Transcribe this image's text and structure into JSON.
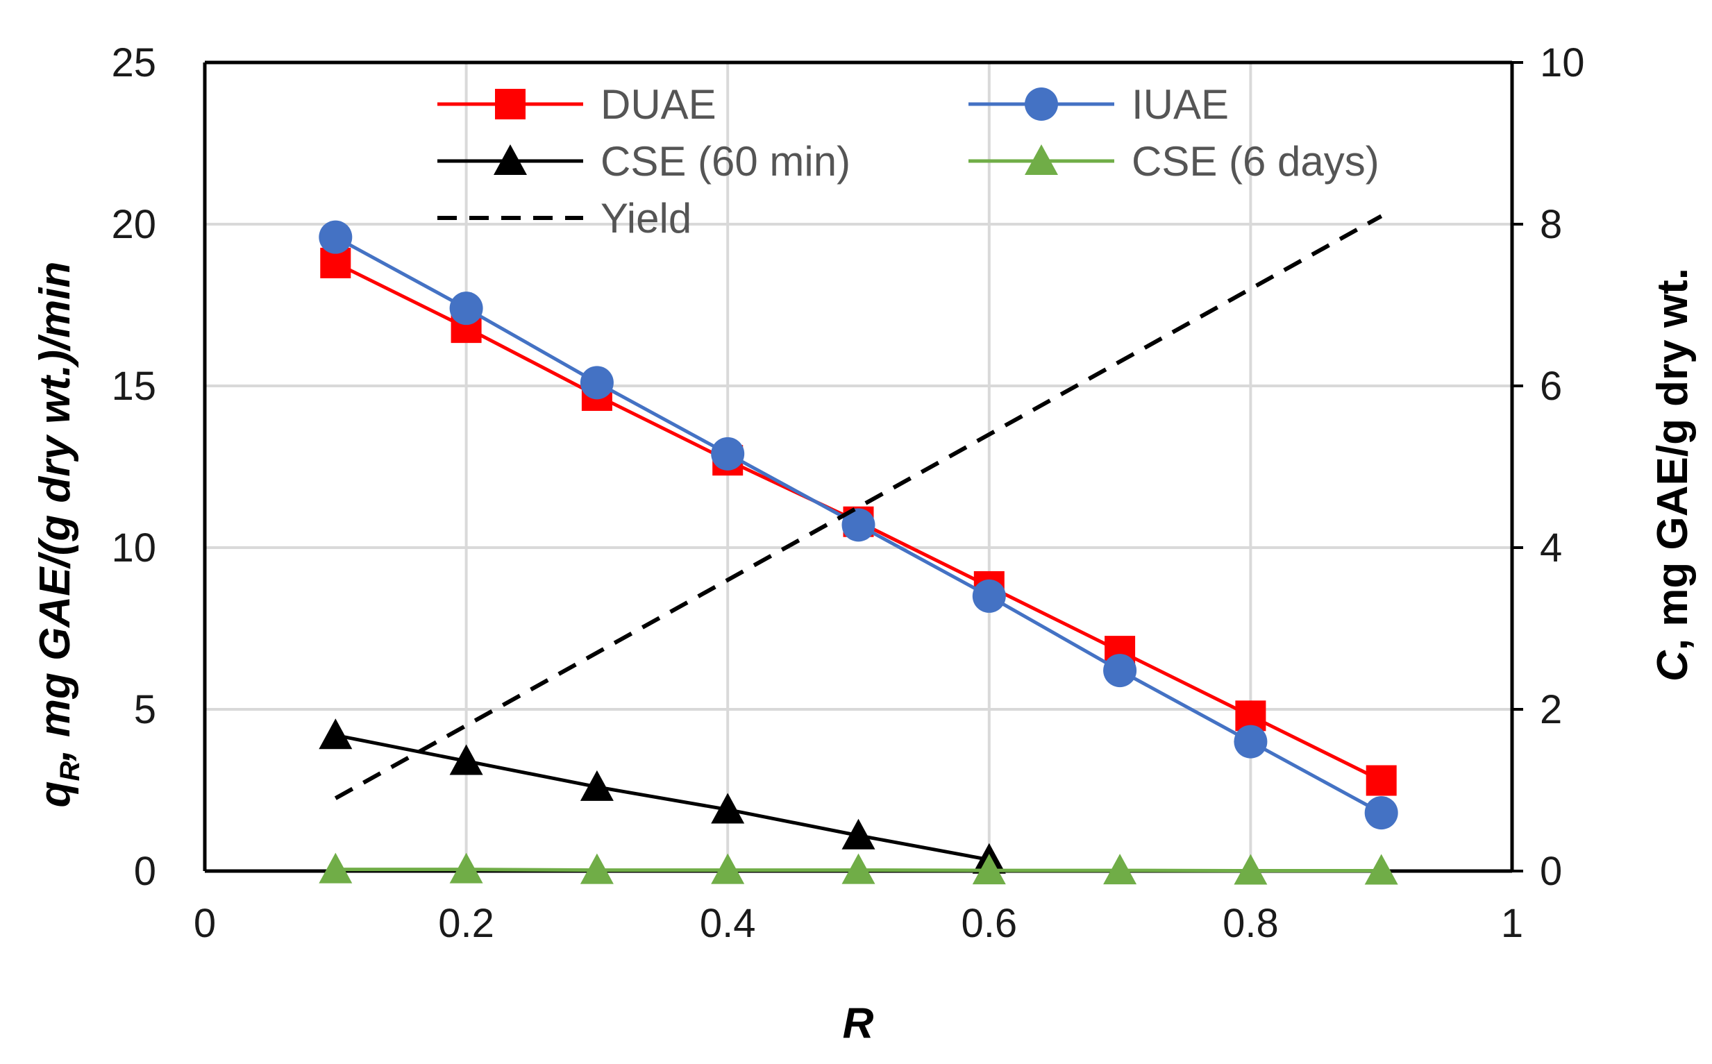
{
  "chart_data": {
    "type": "line",
    "title": "",
    "xlabel": "R",
    "ylabel": "qR, mg GAE/(g dry wt.)/min",
    "ylabel_parts": {
      "var": "q",
      "sub": "R",
      "rest": ", mg GAE/(g dry wt.)/min"
    },
    "y2label": "C, mg GAE/g dry wt.",
    "y2label_parts": {
      "var": "C",
      "rest": ", mg GAE/g dry wt."
    },
    "xlim": [
      0,
      1
    ],
    "ylim": [
      0,
      25
    ],
    "y2lim": [
      0,
      10
    ],
    "x_ticks": [
      "0",
      "0.2",
      "0.4",
      "0.6",
      "0.8",
      "1"
    ],
    "x_tick_values": [
      0,
      0.2,
      0.4,
      0.6,
      0.8,
      1
    ],
    "y_ticks": [
      "0",
      "5",
      "10",
      "15",
      "20",
      "25"
    ],
    "y_tick_values": [
      0,
      5,
      10,
      15,
      20,
      25
    ],
    "y2_ticks": [
      "0",
      "2",
      "4",
      "6",
      "8",
      "10"
    ],
    "y2_tick_values": [
      0,
      2,
      4,
      6,
      8,
      10
    ],
    "grid": true,
    "legend_position": "top",
    "series": [
      {
        "name": "DUAE",
        "axis": "left",
        "marker": "square",
        "color": "#ff0000",
        "line_color": "#ff0000",
        "dashed": false,
        "x": [
          0.1,
          0.2,
          0.3,
          0.4,
          0.5,
          0.6,
          0.7,
          0.8,
          0.9
        ],
        "values": [
          18.8,
          16.8,
          14.7,
          12.7,
          10.8,
          8.8,
          6.8,
          4.8,
          2.8
        ]
      },
      {
        "name": "IUAE",
        "axis": "left",
        "marker": "circle",
        "color": "#4472c4",
        "line_color": "#4472c4",
        "dashed": false,
        "x": [
          0.1,
          0.2,
          0.3,
          0.4,
          0.5,
          0.6,
          0.7,
          0.8,
          0.9
        ],
        "values": [
          19.6,
          17.4,
          15.1,
          12.9,
          10.7,
          8.5,
          6.2,
          4.0,
          1.8
        ]
      },
      {
        "name": "CSE (60 min)",
        "axis": "left",
        "marker": "triangle",
        "color": "#000000",
        "line_color": "#000000",
        "dashed": false,
        "x": [
          0.1,
          0.2,
          0.3,
          0.4,
          0.5,
          0.6
        ],
        "values": [
          4.2,
          3.4,
          2.6,
          1.9,
          1.1,
          0.35
        ]
      },
      {
        "name": "CSE (6 days)",
        "axis": "left",
        "marker": "triangle",
        "color": "#70ad47",
        "line_color": "#70ad47",
        "dashed": false,
        "x": [
          0.1,
          0.2,
          0.3,
          0.4,
          0.5,
          0.6,
          0.7,
          0.8,
          0.9
        ],
        "values": [
          0.05,
          0.05,
          0.03,
          0.03,
          0.03,
          0.02,
          0.02,
          0.01,
          0.01
        ]
      },
      {
        "name": "Yield",
        "axis": "right",
        "marker": "none",
        "color": "#000000",
        "line_color": "#000000",
        "dashed": true,
        "x": [
          0.1,
          0.9
        ],
        "values": [
          0.9,
          8.1
        ]
      }
    ]
  }
}
